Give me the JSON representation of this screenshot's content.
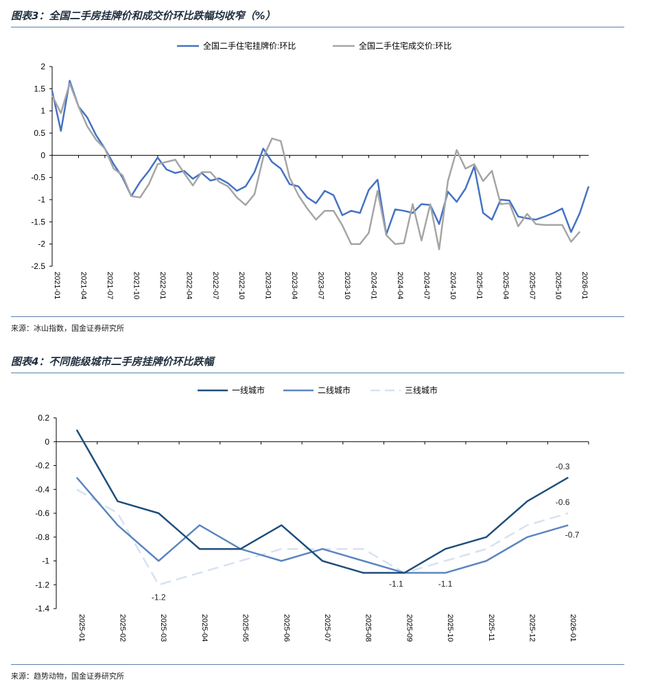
{
  "figure1": {
    "title": "图表3：全国二手房挂牌价和成交价环比跌幅均收窄（%）",
    "source": "来源：冰山指数，国金证券研究所"
  },
  "figure2": {
    "title": "图表4：不同能级城市二手房挂牌价环比跌幅",
    "source": "来源：趋势动物，国金证券研究所"
  },
  "chart_data": [
    {
      "type": "line",
      "title": "全国二手房挂牌价和成交价环比跌幅均收窄（%）",
      "xlabel": "",
      "ylabel": "",
      "ylim": [
        -2.5,
        2
      ],
      "yticks": [
        "2",
        "1.5",
        "1",
        "0.5",
        "0",
        "-0.5",
        "-1",
        "-1.5",
        "-2",
        "-2.5"
      ],
      "x_tick_labels": [
        "2021-01",
        "2021-04",
        "2021-07",
        "2021-10",
        "2022-01",
        "2022-04",
        "2022-07",
        "2022-10",
        "2023-01",
        "2023-04",
        "2023-07",
        "2023-10",
        "2024-01",
        "2024-04",
        "2024-07",
        "2024-10",
        "2025-01",
        "2025-04",
        "2025-07",
        "2025-10",
        "2026-01"
      ],
      "x_start": "2021-01",
      "legend": "top-center",
      "series": [
        {
          "name": "全国二手住宅挂牌价:环比",
          "color": "#4472c4",
          "values": [
            1.45,
            0.55,
            1.68,
            1.1,
            0.85,
            0.45,
            0.15,
            -0.2,
            -0.5,
            -0.92,
            -0.6,
            -0.35,
            -0.05,
            -0.32,
            -0.4,
            -0.35,
            -0.53,
            -0.4,
            -0.57,
            -0.52,
            -0.63,
            -0.8,
            -0.7,
            -0.38,
            0.15,
            -0.15,
            -0.3,
            -0.65,
            -0.7,
            -0.95,
            -1.08,
            -0.8,
            -0.9,
            -1.35,
            -1.25,
            -1.3,
            -0.78,
            -0.55,
            -1.78,
            -1.22,
            -1.25,
            -1.3,
            -1.1,
            -1.12,
            -1.55,
            -0.82,
            -1.05,
            -0.75,
            -0.25,
            -1.3,
            -1.45,
            -1.0,
            -1.02,
            -1.38,
            -1.42,
            -1.45,
            -1.38,
            -1.3,
            -1.2,
            -1.73,
            -1.3,
            -0.7
          ]
        },
        {
          "name": "全国二手住宅成交价:环比",
          "color": "#a5a5a5",
          "values": [
            1.35,
            0.95,
            1.62,
            1.1,
            0.65,
            0.35,
            0.15,
            -0.3,
            -0.45,
            -0.92,
            -0.95,
            -0.65,
            -0.2,
            -0.15,
            -0.1,
            -0.4,
            -0.68,
            -0.38,
            -0.38,
            -0.6,
            -0.7,
            -0.95,
            -1.12,
            -0.88,
            -0.05,
            0.38,
            0.32,
            -0.5,
            -0.9,
            -1.2,
            -1.45,
            -1.25,
            -1.25,
            -1.58,
            -2.0,
            -2.0,
            -1.75,
            -0.8,
            -1.8,
            -2.0,
            -1.98,
            -1.1,
            -1.92,
            -1.1,
            -2.12,
            -0.58,
            0.12,
            -0.3,
            -0.2,
            -0.58,
            -0.35,
            -1.1,
            -1.08,
            -1.6,
            -1.32,
            -1.55,
            -1.57,
            -1.57,
            -1.57,
            -1.95,
            -1.72
          ]
        }
      ]
    },
    {
      "type": "line",
      "title": "不同能级城市二手房挂牌价环比跌幅",
      "xlabel": "",
      "ylabel": "",
      "ylim": [
        -1.4,
        0.2
      ],
      "yticks": [
        "0.2",
        "0",
        "-0.2",
        "-0.4",
        "-0.6",
        "-0.8",
        "-1",
        "-1.2",
        "-1.4"
      ],
      "categories": [
        "2025-01",
        "2025-02",
        "2025-03",
        "2025-04",
        "2025-05",
        "2025-06",
        "2025-07",
        "2025-08",
        "2025-09",
        "2025-10",
        "2025-11",
        "2025-12",
        "2026-01"
      ],
      "legend": "top-center",
      "series": [
        {
          "name": "一线城市",
          "color": "#1f4e79",
          "dash": "solid",
          "values": [
            0.1,
            -0.5,
            -0.6,
            -0.9,
            -0.9,
            -0.7,
            -1.0,
            -1.1,
            -1.1,
            -0.9,
            -0.8,
            -0.5,
            -0.3
          ]
        },
        {
          "name": "二线城市",
          "color": "#5b85c0",
          "dash": "solid",
          "values": [
            -0.3,
            -0.7,
            -1.0,
            -0.7,
            -0.9,
            -1.0,
            -0.9,
            -1.0,
            -1.1,
            -1.1,
            -1.0,
            -0.8,
            -0.7
          ]
        },
        {
          "name": "三线城市",
          "color": "#d6e2f0",
          "dash": "dashed",
          "values": [
            -0.4,
            -0.6,
            -1.2,
            -1.1,
            -1.0,
            -0.9,
            -0.9,
            -0.9,
            -1.1,
            -1.0,
            -0.9,
            -0.7,
            -0.6
          ]
        }
      ],
      "annotations": [
        {
          "series": 2,
          "index": 2,
          "text": "-1.2"
        },
        {
          "series": 0,
          "index": 8,
          "text": "-1.1"
        },
        {
          "series": 1,
          "index": 9,
          "text": "-1.1"
        },
        {
          "series": 0,
          "index": 12,
          "text": "-0.3"
        },
        {
          "series": 2,
          "index": 12,
          "text": "-0.6"
        },
        {
          "series": 1,
          "index": 12,
          "text": "-0.7"
        }
      ]
    }
  ]
}
